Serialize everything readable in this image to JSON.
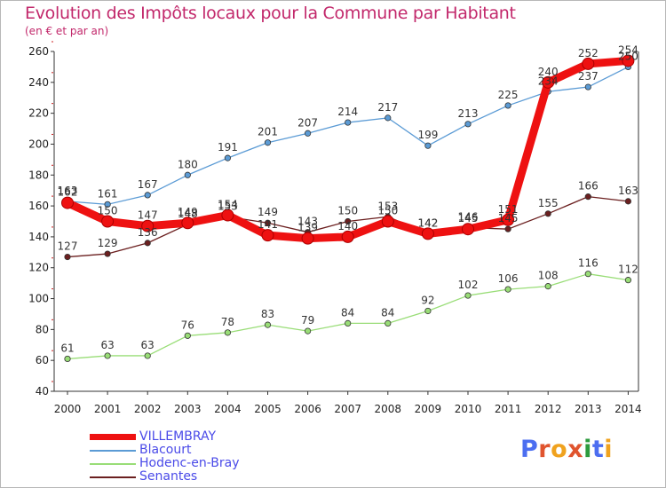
{
  "chart_data": {
    "type": "line",
    "title": "Evolution des Impôts locaux pour la Commune par Habitant",
    "subtitle": "(en € et par an)",
    "x": [
      "2000",
      "2001",
      "2002",
      "2003",
      "2004",
      "2005",
      "2006",
      "2007",
      "2008",
      "2009",
      "2010",
      "2011",
      "2012",
      "2013",
      "2014"
    ],
    "ylim": [
      40,
      260
    ],
    "yticks": [
      40,
      60,
      80,
      100,
      120,
      140,
      160,
      180,
      200,
      220,
      240,
      260
    ],
    "grid": false,
    "legend_position": "bottom-left",
    "series": [
      {
        "name": "Blacourt",
        "color": "#5b9bd5",
        "values": [
          163,
          161,
          167,
          180,
          191,
          201,
          207,
          214,
          217,
          199,
          213,
          225,
          234,
          237,
          250
        ],
        "labels": [
          "163",
          "161",
          "167",
          "180",
          "191",
          "201",
          "207",
          "214",
          "217",
          "199",
          "213",
          "225",
          "234",
          "237",
          "250"
        ]
      },
      {
        "name": "Hodenc-en-Bray",
        "color": "#99dd77",
        "values": [
          61,
          63,
          63,
          76,
          78,
          83,
          79,
          84,
          84,
          92,
          102,
          106,
          108,
          116,
          112
        ],
        "labels": [
          "61",
          "63",
          "63",
          "76",
          "78",
          "83",
          "79",
          "84",
          "84",
          "92",
          "102",
          "106",
          "108",
          "116",
          "112"
        ]
      },
      {
        "name": "Senantes",
        "color": "#6b1f1f",
        "values": [
          127,
          129,
          136,
          148,
          153,
          149,
          143,
          150,
          153,
          142,
          146,
          145,
          155,
          166,
          163
        ],
        "labels": [
          "127",
          "129",
          "136",
          "148",
          "153",
          "149",
          "143",
          "150",
          "153",
          "142",
          "146",
          "145",
          "155",
          "166",
          "163"
        ]
      },
      {
        "name": "VILLEMBRAY",
        "color": "#ee1111",
        "values": [
          162,
          150,
          147,
          149,
          154,
          141,
          139,
          140,
          150,
          142,
          145,
          151,
          240,
          252,
          254
        ],
        "labels": [
          "162",
          "150",
          "147",
          "149",
          "154",
          "141",
          "139",
          "140",
          "150",
          "142",
          "145",
          "151",
          "240",
          "252",
          "254"
        ]
      }
    ]
  },
  "legend": {
    "items": [
      {
        "name": "VILLEMBRAY",
        "color": "#ee1111"
      },
      {
        "name": "Blacourt",
        "color": "#5b9bd5"
      },
      {
        "name": "Hodenc-en-Bray",
        "color": "#99dd77"
      },
      {
        "name": "Senantes",
        "color": "#6b1f1f"
      }
    ]
  },
  "logo": {
    "text": "Proxiti",
    "letters": [
      "P",
      "r",
      "o",
      "x",
      "i",
      "t",
      "i"
    ],
    "colors": [
      "#4c6ef0",
      "#e0542e",
      "#f0a21e",
      "#e0542e",
      "#2e9b3e",
      "#4c6ef0",
      "#f0a21e"
    ]
  }
}
